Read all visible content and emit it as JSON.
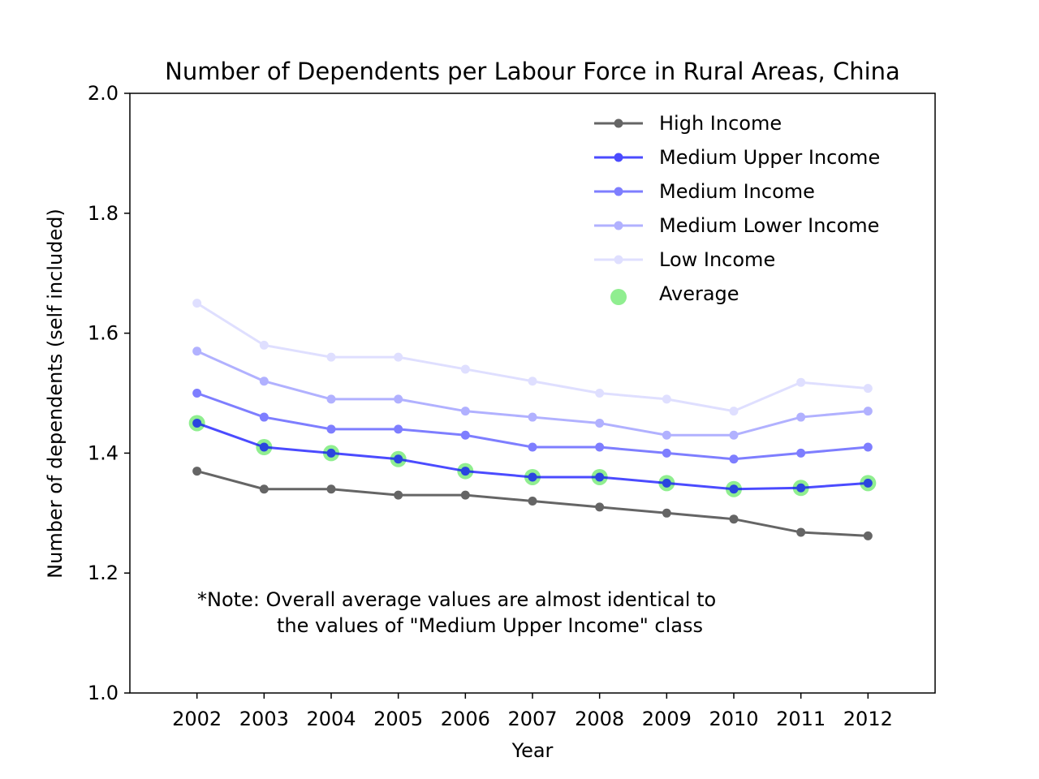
{
  "chart_data": {
    "type": "line",
    "title": "Number of Dependents per Labour Force in Rural Areas, China",
    "xlabel": "Year",
    "ylabel": "Number of dependents (self included)",
    "x": [
      2002,
      2003,
      2004,
      2005,
      2006,
      2007,
      2008,
      2009,
      2010,
      2011,
      2012
    ],
    "xlim": [
      2001,
      2013
    ],
    "ylim": [
      1.0,
      2.0
    ],
    "yticks": [
      "1.0",
      "1.2",
      "1.4",
      "1.6",
      "1.8",
      "2.0"
    ],
    "grid": false,
    "legend_position": "top-right",
    "series": [
      {
        "name": "High Income",
        "color": "#000000",
        "opacity": 0.6,
        "marker": "circle",
        "values": [
          1.37,
          1.34,
          1.34,
          1.33,
          1.33,
          1.32,
          1.31,
          1.3,
          1.29,
          1.268,
          1.262
        ]
      },
      {
        "name": "Medium Upper Income",
        "color": "#0000ff",
        "opacity": 0.7,
        "marker": "circle",
        "values": [
          1.45,
          1.41,
          1.4,
          1.39,
          1.37,
          1.36,
          1.36,
          1.35,
          1.34,
          1.342,
          1.35
        ]
      },
      {
        "name": "Medium Income",
        "color": "#0000ff",
        "opacity": 0.5,
        "marker": "circle",
        "values": [
          1.5,
          1.46,
          1.44,
          1.44,
          1.43,
          1.41,
          1.41,
          1.4,
          1.39,
          1.4,
          1.41
        ]
      },
      {
        "name": "Medium Lower Income",
        "color": "#0000ff",
        "opacity": 0.3,
        "marker": "circle",
        "values": [
          1.57,
          1.52,
          1.49,
          1.49,
          1.47,
          1.46,
          1.45,
          1.43,
          1.43,
          1.46,
          1.47
        ]
      },
      {
        "name": "Low Income",
        "color": "#0000ff",
        "opacity": 0.12,
        "marker": "circle",
        "values": [
          1.65,
          1.58,
          1.56,
          1.56,
          1.54,
          1.52,
          1.5,
          1.49,
          1.47,
          1.518,
          1.508
        ]
      }
    ],
    "average": {
      "name": "Average",
      "color": "#90ee90",
      "type": "scatter",
      "values": [
        1.45,
        1.41,
        1.4,
        1.39,
        1.37,
        1.36,
        1.36,
        1.35,
        1.34,
        1.342,
        1.35
      ]
    },
    "annotation": {
      "lines": [
        "*Note: Overall average values are almost identical to",
        "the values of \"Medium Upper Income\" class"
      ]
    }
  }
}
